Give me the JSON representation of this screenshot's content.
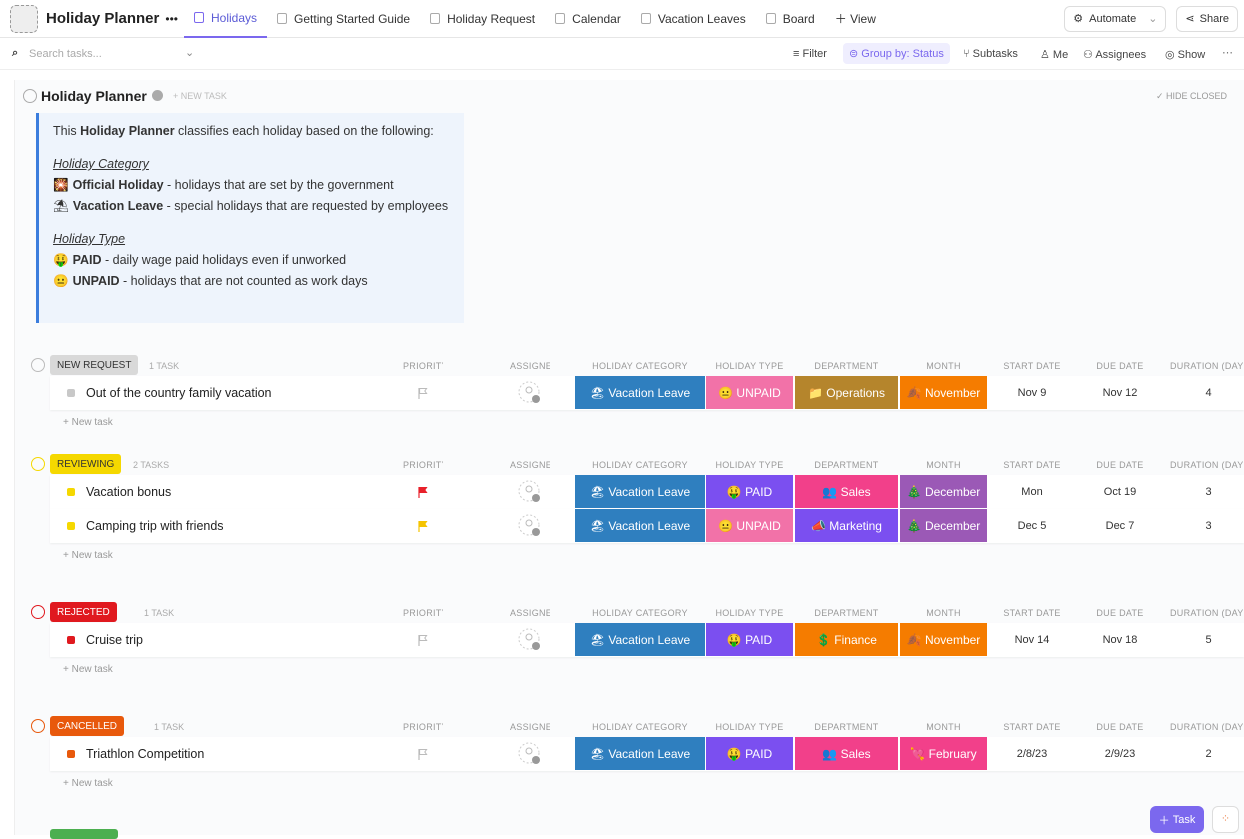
{
  "toolbar": {
    "title": "Holiday Planner",
    "tabs": [
      "Holidays",
      "Getting Started Guide",
      "Holiday Request",
      "Calendar",
      "Vacation Leaves",
      "Board"
    ],
    "add_view": "View",
    "automate": "Automate",
    "share": "Share"
  },
  "filterbar": {
    "search_placeholder": "Search tasks...",
    "filter": "Filter",
    "group_by": "Group by: Status",
    "subtasks": "Subtasks",
    "me": "Me",
    "assignees": "Assignees",
    "show": "Show"
  },
  "list": {
    "title": "Holiday Planner",
    "new_task": "+ NEW TASK",
    "hide_closed": "HIDE CLOSED",
    "add_task": "+ New task",
    "columns": [
      "PRIORITY",
      "ASSIGNEE",
      "HOLIDAY CATEGORY",
      "HOLIDAY TYPE",
      "DEPARTMENT",
      "MONTH",
      "START DATE",
      "DUE DATE",
      "DURATION (DAYS)"
    ],
    "pill_colors": {
      "🏖 Vacation Leave": "#2f7fbf",
      "😐 UNPAID": "#f272a8",
      "🤑 PAID": "#7b4ff0",
      "📁 Operations": "#b5852c",
      "💲 Finance": "#f57c00",
      "👥 Sales": "#f2408a",
      "📣 Marketing": "#7b4ff0",
      "🍂 November": "#f57c00",
      "🎄 December": "#9b59b6",
      "💘 February": "#f2408a"
    }
  },
  "description": {
    "intro": [
      "This ",
      "Holiday Planner",
      " classifies each holiday based on the following:"
    ],
    "sections": [
      {
        "heading": "Holiday Category",
        "items": [
          {
            "icon": "🎇",
            "label": "Official Holiday",
            "text": " - holidays that are set by the government"
          },
          {
            "icon": "⛱",
            "label": "Vacation Leave",
            "text": " - special holidays that are requested by employees"
          }
        ]
      },
      {
        "heading": "Holiday Type",
        "items": [
          {
            "icon": "🤑",
            "label": "PAID",
            "text": " - daily wage paid holidays even if unworked"
          },
          {
            "icon": "😐",
            "label": "UNPAID",
            "text": " - holidays that are not counted as work days"
          }
        ]
      }
    ]
  },
  "groups": [
    {
      "status": "NEW REQUEST",
      "color": "#d9d9d9",
      "text_color": "#333333",
      "count": "1 TASK",
      "tasks": [
        {
          "name": "Out of the country family vacation",
          "priority_color": null,
          "category": "🏖 Vacation Leave",
          "type": "😐 UNPAID",
          "department": "📁 Operations",
          "month": "🍂 November",
          "start": "Nov 9",
          "due": "Nov 12",
          "duration": 4
        }
      ]
    },
    {
      "status": "REVIEWING",
      "color": "#f5d800",
      "text_color": "#333333",
      "count": "2 TASKS",
      "tasks": [
        {
          "name": "Vacation bonus",
          "priority_color": "#e8202a",
          "category": "🏖 Vacation Leave",
          "type": "🤑 PAID",
          "department": "👥 Sales",
          "month": "🎄 December",
          "start": "Mon",
          "due": "Oct 19",
          "duration": 3
        },
        {
          "name": "Camping trip with friends",
          "priority_color": "#f5c400",
          "category": "🏖 Vacation Leave",
          "type": "😐 UNPAID",
          "department": "📣 Marketing",
          "month": "🎄 December",
          "start": "Dec 5",
          "due": "Dec 7",
          "duration": 3
        }
      ]
    },
    {
      "status": "REJECTED",
      "color": "#e0191f",
      "text_color": "#ffffff",
      "count": "1 TASK",
      "tasks": [
        {
          "name": "Cruise trip",
          "priority_color": null,
          "category": "🏖 Vacation Leave",
          "type": "🤑 PAID",
          "department": "💲 Finance",
          "month": "🍂 November",
          "start": "Nov 14",
          "due": "Nov 18",
          "duration": 5
        }
      ]
    },
    {
      "status": "CANCELLED",
      "color": "#e8590c",
      "text_color": "#ffffff",
      "count": "1 TASK",
      "tasks": [
        {
          "name": "Triathlon Competition",
          "priority_color": null,
          "category": "🏖 Vacation Leave",
          "type": "🤑 PAID",
          "department": "👥 Sales",
          "month": "💘 February",
          "start": "2/8/23",
          "due": "2/9/23",
          "duration": 2
        }
      ]
    }
  ],
  "fab": {
    "task": "Task"
  }
}
